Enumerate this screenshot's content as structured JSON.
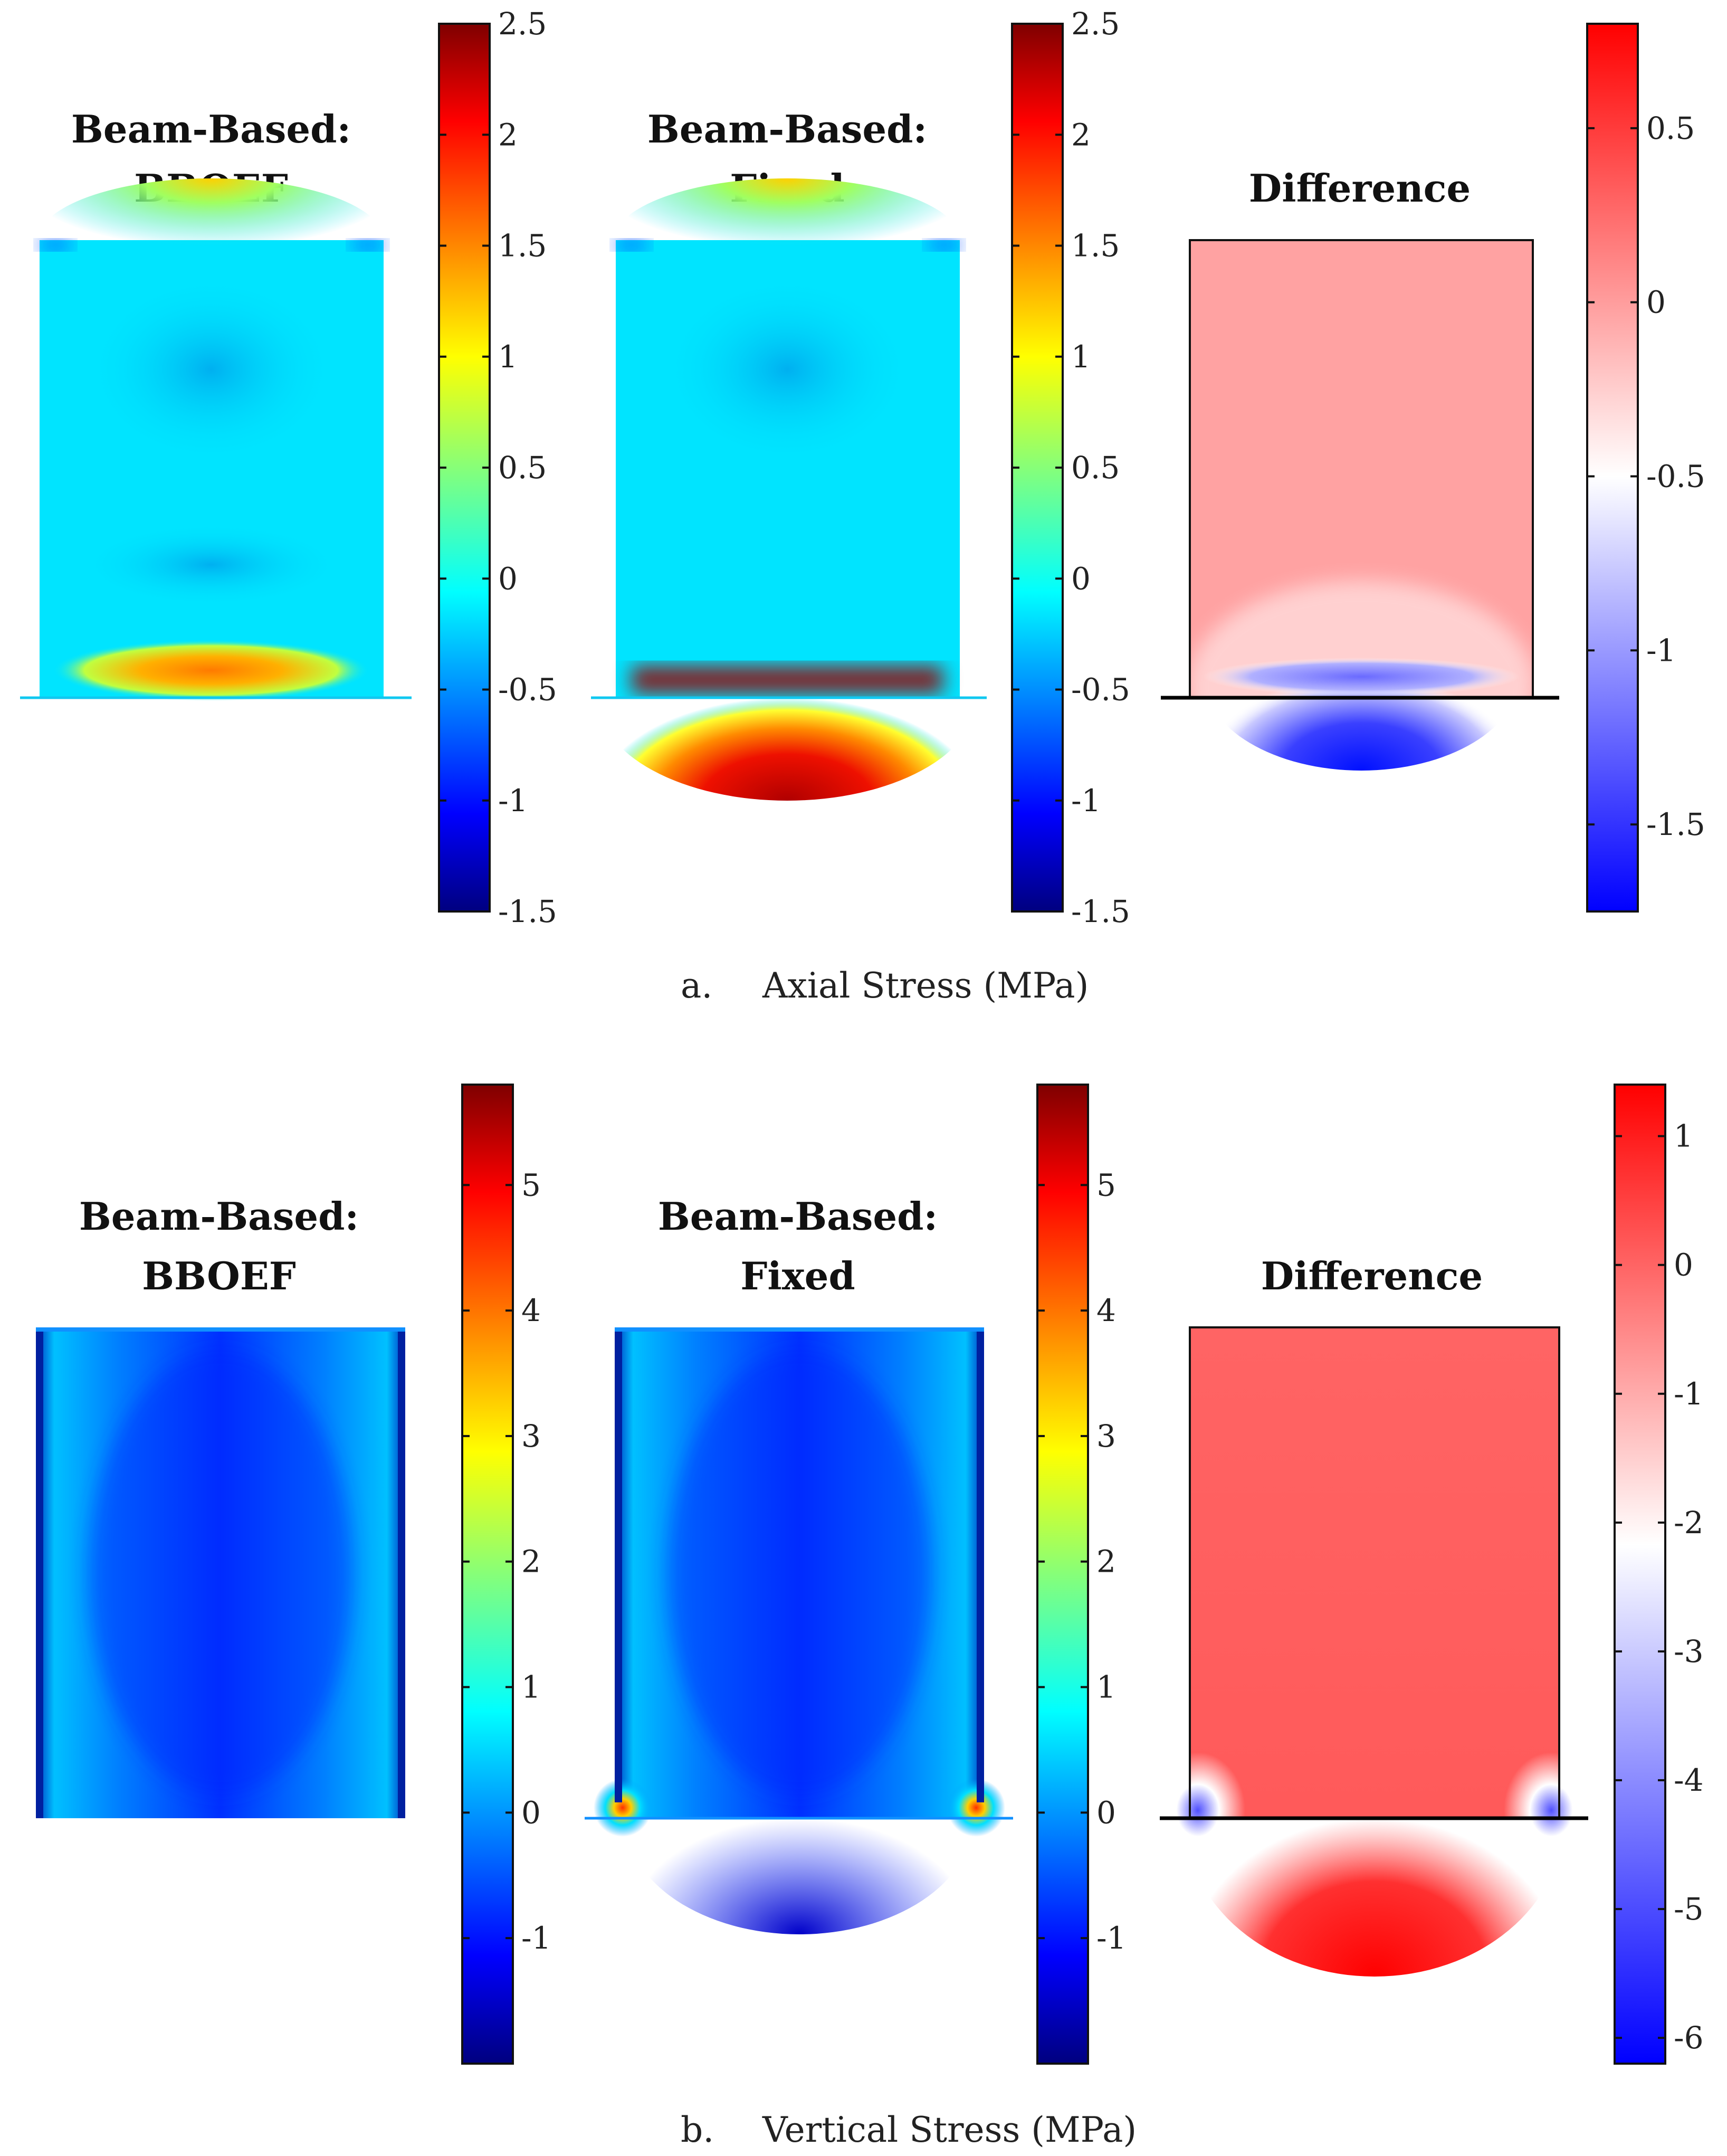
{
  "chart_data": [
    {
      "type": "heatmap",
      "group": "a",
      "caption_label": "a.",
      "caption_text": "Axial Stress (MPa)",
      "panels": [
        {
          "title": [
            "Beam-Based:",
            "BBOEF"
          ],
          "colormap": "jet",
          "clim": [
            -1.5,
            2.5
          ],
          "ticks": [
            -1.5,
            -1,
            -0.5,
            0,
            0.5,
            1,
            1.5,
            2,
            2.5
          ],
          "tick_labels": [
            "-1.5",
            "-1",
            "-0.5",
            "0",
            "0.5",
            "1",
            "1.5",
            "2",
            "2.5"
          ],
          "field": "axial_bboef"
        },
        {
          "title": [
            "Beam-Based:",
            "Fixed"
          ],
          "colormap": "jet",
          "clim": [
            -1.5,
            2.5
          ],
          "ticks": [
            -1.5,
            -1,
            -0.5,
            0,
            0.5,
            1,
            1.5,
            2,
            2.5
          ],
          "tick_labels": [
            "-1.5",
            "-1",
            "-0.5",
            "0",
            "0.5",
            "1",
            "1.5",
            "2",
            "2.5"
          ],
          "field": "axial_fixed"
        },
        {
          "title": [
            "Difference"
          ],
          "colormap": "bwr",
          "clim": [
            -1.75,
            0.8
          ],
          "ticks": [
            -1.5,
            -1,
            -0.5,
            0,
            0.5
          ],
          "tick_labels": [
            "-1.5",
            "-1",
            "-0.5",
            "0",
            "0.5"
          ],
          "field": "axial_diff"
        }
      ]
    },
    {
      "type": "heatmap",
      "group": "b",
      "caption_label": "b.",
      "caption_text": "Vertical Stress (MPa)",
      "panels": [
        {
          "title": [
            "Beam-Based:",
            "BBOEF"
          ],
          "colormap": "jet",
          "clim": [
            -2,
            5.8
          ],
          "ticks": [
            -1,
            0,
            1,
            2,
            3,
            4,
            5
          ],
          "tick_labels": [
            "-1",
            "0",
            "1",
            "2",
            "3",
            "4",
            "5"
          ],
          "field": "vert_bboef"
        },
        {
          "title": [
            "Beam-Based:",
            "Fixed"
          ],
          "colormap": "jet",
          "clim": [
            -2,
            5.8
          ],
          "ticks": [
            -1,
            0,
            1,
            2,
            3,
            4,
            5
          ],
          "tick_labels": [
            "-1",
            "0",
            "1",
            "2",
            "3",
            "4",
            "5"
          ],
          "field": "vert_fixed"
        },
        {
          "title": [
            "Difference"
          ],
          "colormap": "bwr",
          "clim": [
            -6.2,
            1.4
          ],
          "ticks": [
            -6,
            -5,
            -4,
            -3,
            -2,
            -1,
            0,
            1
          ],
          "tick_labels": [
            "-6",
            "-5",
            "-4",
            "-3",
            "-2",
            "-1",
            "0",
            "1"
          ],
          "field": "vert_diff"
        }
      ]
    }
  ]
}
